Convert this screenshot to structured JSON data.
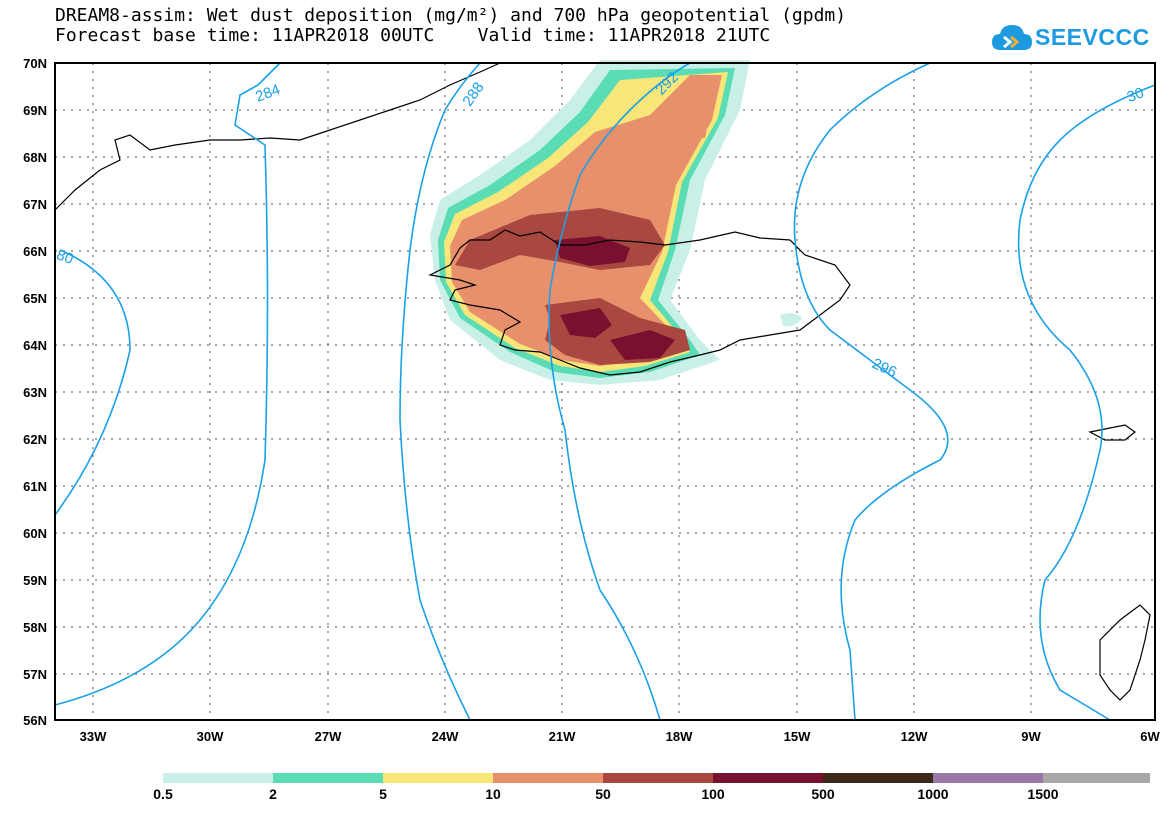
{
  "title": {
    "line1": "DREAM8-assim: Wet dust deposition (mg/m²) and 700 hPa geopotential (gpdm)",
    "line2": "Forecast base time: 11APR2018 00UTC    Valid time: 11APR2018 21UTC"
  },
  "logo": {
    "text": "SEEVCCC",
    "icon": "cloud-chevron-icon",
    "color": "#1e9ae0"
  },
  "map": {
    "latitude_labels": [
      "70N",
      "69N",
      "68N",
      "67N",
      "66N",
      "65N",
      "64N",
      "63N",
      "62N",
      "61N",
      "60N",
      "59N",
      "58N",
      "57N",
      "56N"
    ],
    "longitude_labels": [
      "33W",
      "30W",
      "27W",
      "24W",
      "21W",
      "18W",
      "15W",
      "12W",
      "9W",
      "6W"
    ],
    "contour_color": "#1aa0e8",
    "contour_labels": [
      "284",
      "288",
      "292",
      "296",
      "80",
      "30"
    ]
  },
  "colorbar": {
    "colors": [
      "#c8f0e8",
      "#5adcb4",
      "#f8e678",
      "#e8906c",
      "#a84840",
      "#7a1030",
      "#3c2818",
      "#9878a8",
      "#a8a8a8"
    ],
    "labels": [
      "0.5",
      "2",
      "5",
      "10",
      "50",
      "100",
      "500",
      "1000",
      "1500"
    ]
  }
}
